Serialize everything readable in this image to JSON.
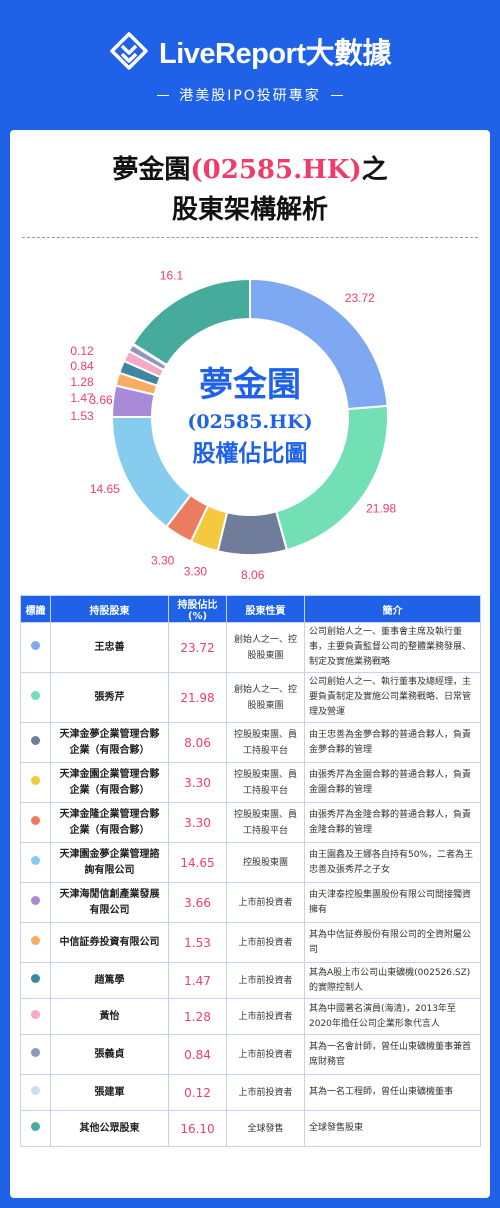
{
  "brand": {
    "name": "LiveReport大數據",
    "tagline": "港美股IPO投研專家"
  },
  "title": {
    "company": "夢金園",
    "code": "(02585.HK)",
    "suffix": "之",
    "line2": "股東架構解析"
  },
  "chart_center": {
    "line1": "夢金園",
    "line2": "(02585.HK)",
    "line3": "股權佔比圖"
  },
  "colors": {
    "header_bg": "#1f62e8",
    "accent": "#ef3d6a"
  },
  "chart_data": {
    "type": "pie",
    "donut": true,
    "labels": [
      "王忠善",
      "張秀芹",
      "天津金夢企業管理合夥企業（有限合夥）",
      "天津金園企業管理合夥企業（有限合夥）",
      "天津金隆企業管理合夥企業（有限合夥）",
      "天津園金夢企業管理諮詢有限公司",
      "天津海閒信創產業發展有限公司",
      "中信証券投資有限公司",
      "趙篤學",
      "黃怡",
      "張義貞",
      "張建軍",
      "其他公眾股東"
    ],
    "values": [
      23.72,
      21.98,
      8.06,
      3.3,
      3.3,
      14.65,
      3.66,
      1.53,
      1.47,
      1.28,
      0.84,
      0.12,
      16.1
    ],
    "value_labels": [
      "23.72",
      "21.98",
      "8.06",
      "3.30",
      "3.30",
      "14.65",
      "3.66",
      "1.53",
      "1.47",
      "1.28",
      "0.84",
      "0.12",
      "16.1"
    ],
    "colors": [
      "#7ea8f2",
      "#72dfb4",
      "#6f7c9a",
      "#f6c83f",
      "#ec7c60",
      "#86ccef",
      "#a88ad8",
      "#f7ad62",
      "#3f86a0",
      "#f4a9c6",
      "#9196bd",
      "#cddcf7",
      "#46ab9c"
    ]
  },
  "table": {
    "headers": [
      "標識",
      "持股股東",
      "持股佔比(%)",
      "股東性質",
      "簡介"
    ],
    "rows": [
      {
        "holder": "王忠善",
        "pct": "23.72",
        "nature": "創始人之一、控股股東團",
        "intro": "公司創始人之一、董事會主席及執行董事，主要負責監督公司的整體業務發展、制定及實施業務戰略"
      },
      {
        "holder": "張秀芹",
        "pct": "21.98",
        "nature": "創始人之一、控股股東團",
        "intro": "公司創始人之一、執行董事及總經理，主要負責制定及實施公司業務戰略、日常管理及營運"
      },
      {
        "holder": "天津金夢企業管理合夥企業（有限合夥）",
        "pct": "8.06",
        "nature": "控股股東團、員工持股平台",
        "intro": "由王忠善為金夢合夥的普通合夥人，負責金夢合夥的管理"
      },
      {
        "holder": "天津金園企業管理合夥企業（有限合夥）",
        "pct": "3.30",
        "nature": "控股股東團、員工持股平台",
        "intro": "由張秀芹為金園合夥的普通合夥人，負責金園合夥的管理"
      },
      {
        "holder": "天津金隆企業管理合夥企業（有限合夥）",
        "pct": "3.30",
        "nature": "控股股東團、員工持股平台",
        "intro": "由張秀芹為金隆合夥的普通合夥人，負責金隆合夥的管理"
      },
      {
        "holder": "天津園金夢企業管理諮詢有限公司",
        "pct": "14.65",
        "nature": "控股股東團",
        "intro": "由王園鑫及王娜各自持有50%，二者為王忠善及張秀芹之子女"
      },
      {
        "holder": "天津海閒信創產業發展有限公司",
        "pct": "3.66",
        "nature": "上市前投資者",
        "intro": "由天津泰控股集團股份有限公司間接獨資擁有"
      },
      {
        "holder": "中信証券投資有限公司",
        "pct": "1.53",
        "nature": "上市前投資者",
        "intro": "其為中信証券股份有限公司的全資附屬公司"
      },
      {
        "holder": "趙篤學",
        "pct": "1.47",
        "nature": "上市前投資者",
        "intro": "其為A股上市公司山東礦機(002526.SZ)的實際控制人"
      },
      {
        "holder": "黃怡",
        "pct": "1.28",
        "nature": "上市前投資者",
        "intro": "其為中國著名演員(海清)，2013年至2020年擔任公司企業形象代言人"
      },
      {
        "holder": "張義貞",
        "pct": "0.84",
        "nature": "上市前投資者",
        "intro": "其為一名會計師，曾任山東礦機董事兼首席財務官"
      },
      {
        "holder": "張建軍",
        "pct": "0.12",
        "nature": "上市前投資者",
        "intro": "其為一名工程師，曾任山東礦機董事"
      },
      {
        "holder": "其他公眾股東",
        "pct": "16.10",
        "nature": "全球發售",
        "intro": "全球發售股東"
      }
    ]
  }
}
